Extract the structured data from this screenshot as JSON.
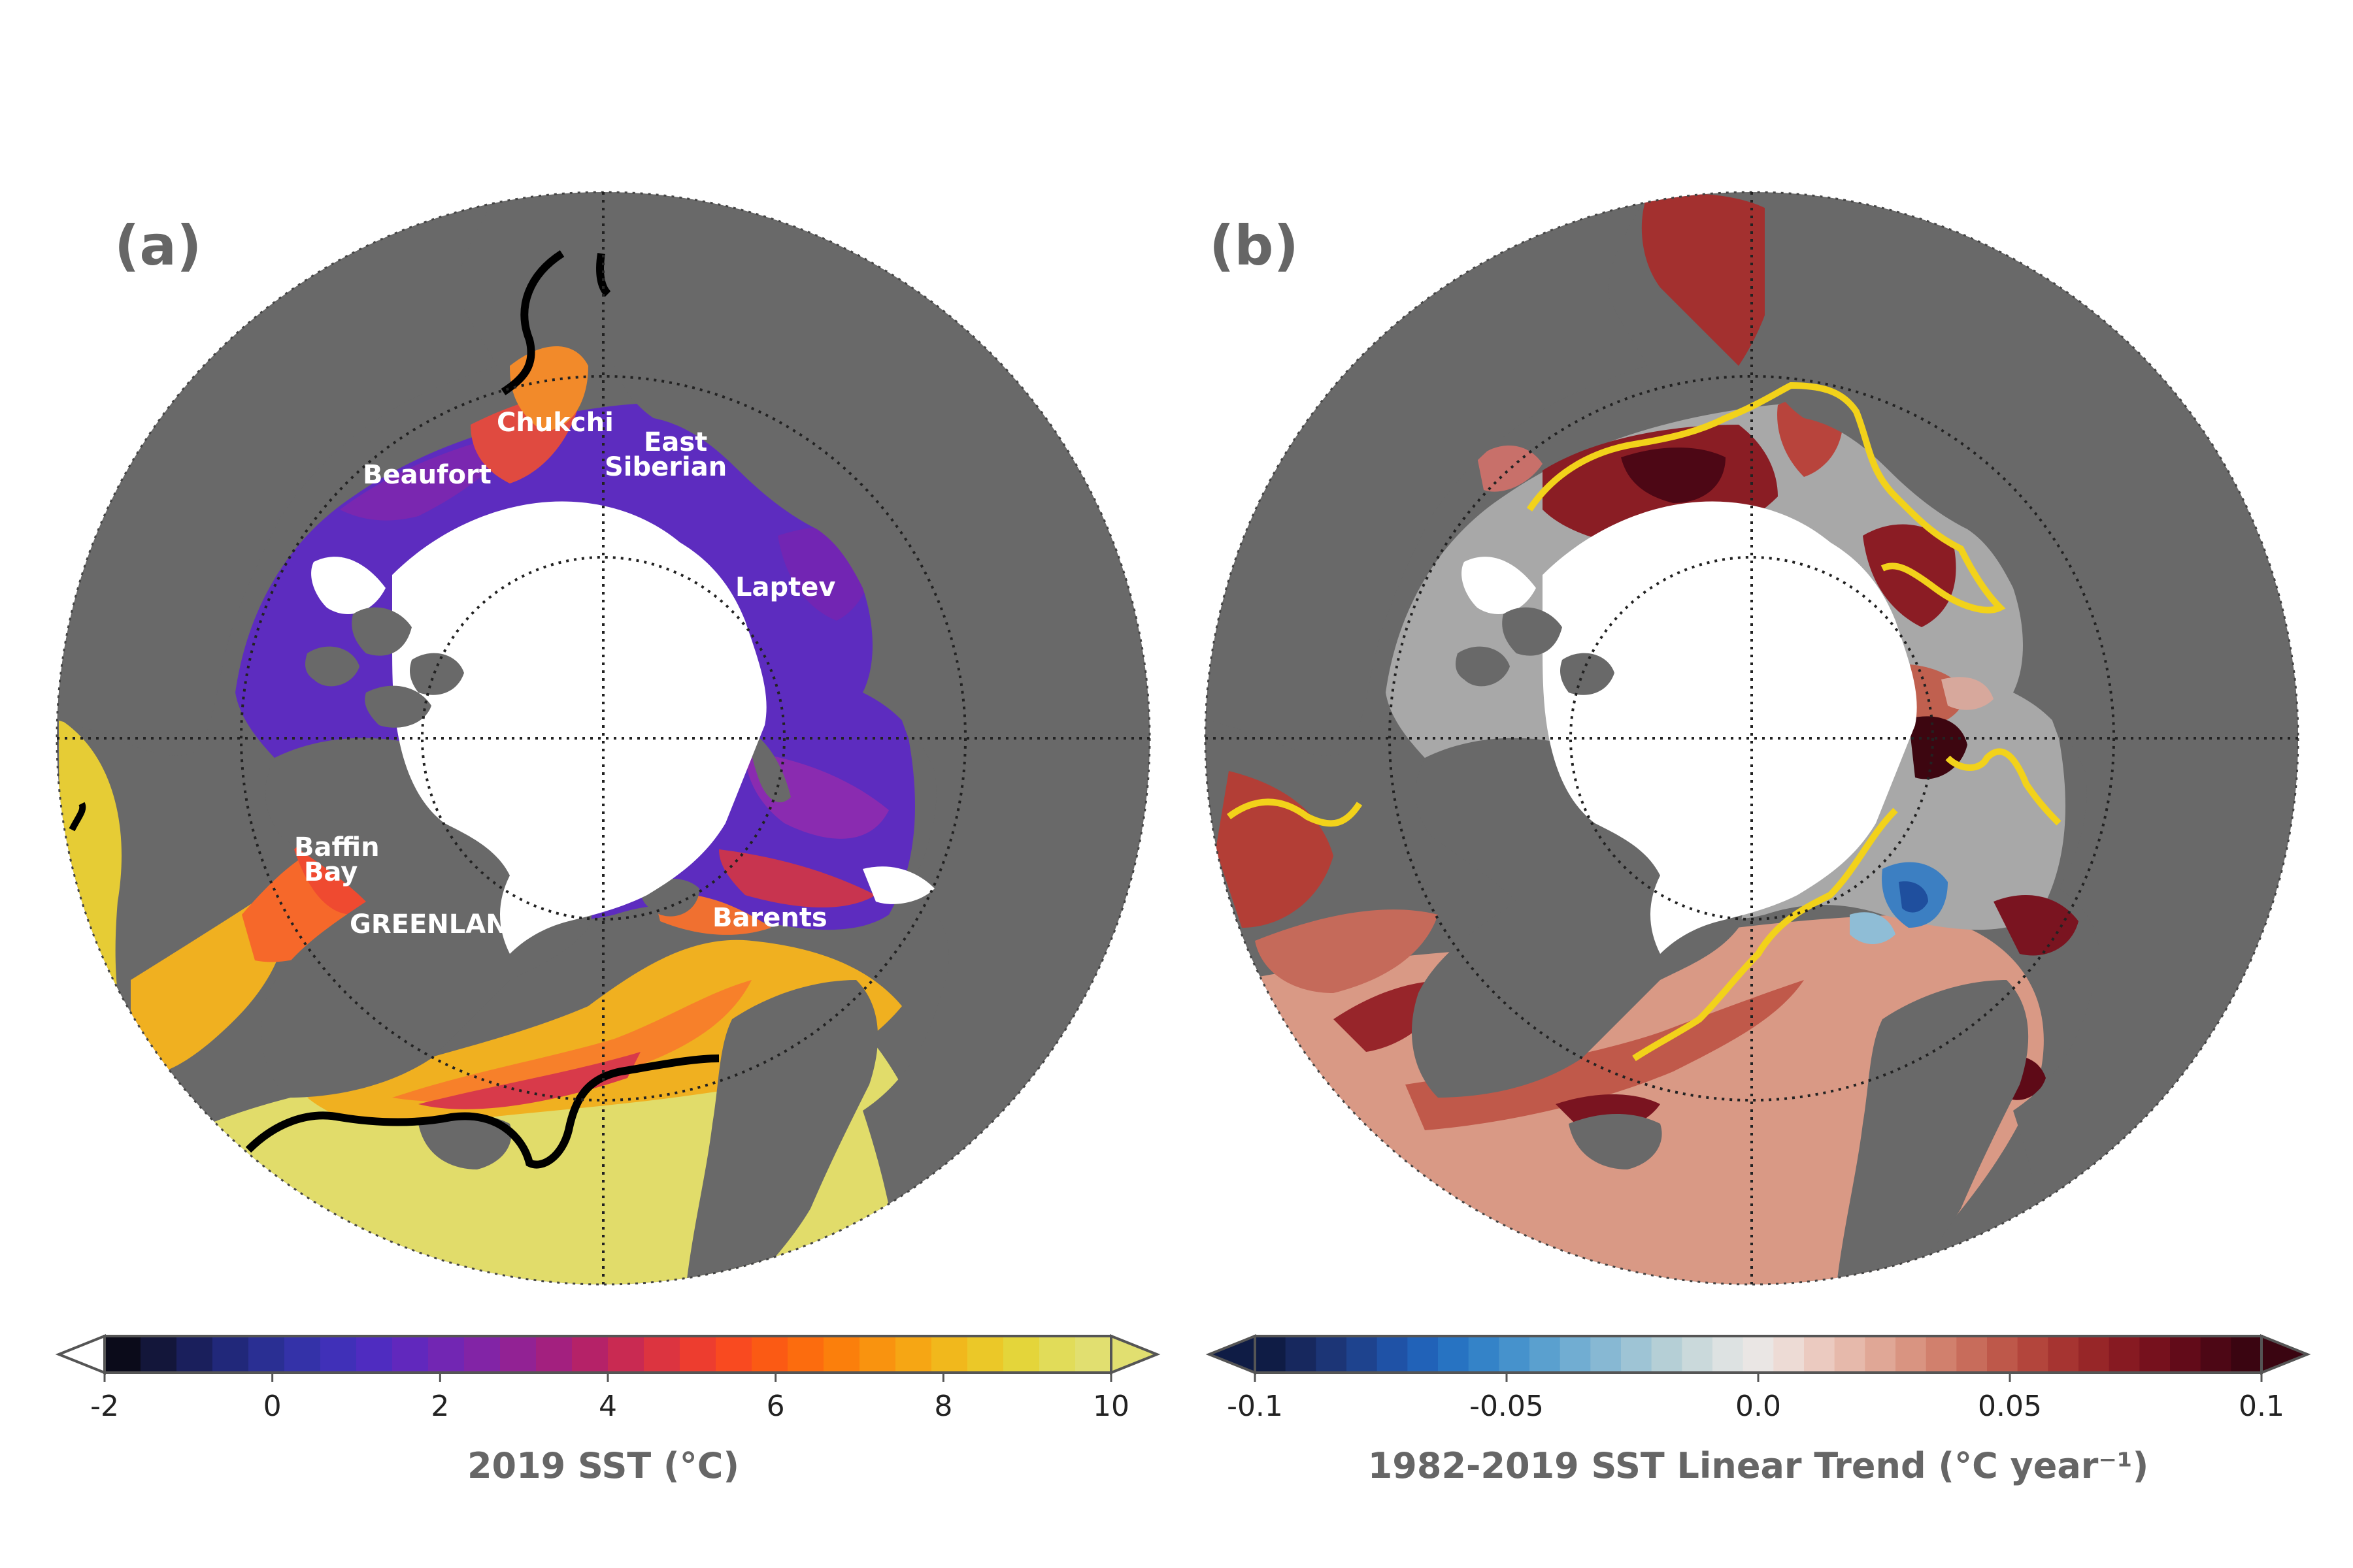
{
  "panels": [
    {
      "label": "(a)",
      "regions": [
        "Chukchi",
        "East",
        "Siberian",
        "Beaufort",
        "Laptev",
        "Baffin",
        "Bay",
        "GREENLAND",
        "Barents"
      ]
    },
    {
      "label": "(b)",
      "regions": []
    }
  ],
  "colorbars": [
    {
      "title": "2019 SST (°C)",
      "ticks": [
        "-2",
        "0",
        "2",
        "4",
        "6",
        "8",
        "10"
      ],
      "range": [
        -2,
        10
      ],
      "extend": "both",
      "colors": [
        "#0b0b1a",
        "#13163a",
        "#1a1f5c",
        "#21287a",
        "#2a2f93",
        "#3432a8",
        "#4030b8",
        "#4f2cc0",
        "#6128bd",
        "#7226b3",
        "#8224a6",
        "#922294",
        "#a3207f",
        "#b52268",
        "#c92a52",
        "#dc3440",
        "#ed3d2f",
        "#f94a20",
        "#fb5a14",
        "#fc6c0e",
        "#fb7f0c",
        "#f9930f",
        "#f6a614",
        "#f1b81c",
        "#ebc828",
        "#e4d53a",
        "#e1dc59",
        "#e1df70"
      ]
    },
    {
      "title": "1982-2019 SST Linear Trend (°C year⁻¹)",
      "ticks": [
        "-0.1",
        "-0.05",
        "0.0",
        "0.05",
        "0.1"
      ],
      "range": [
        -0.1,
        0.1
      ],
      "extend": "both",
      "colors": [
        "#0f1c45",
        "#17285e",
        "#1c3576",
        "#1e438e",
        "#1f52a6",
        "#2162b8",
        "#2773c2",
        "#3483c8",
        "#4692cc",
        "#5aa0cf",
        "#71add2",
        "#87b8d3",
        "#9ec4d5",
        "#b5cfd6",
        "#cad9db",
        "#dde2e2",
        "#eae6e4",
        "#eddbd5",
        "#ebcac0",
        "#e6b9ab",
        "#e0a796",
        "#d99481",
        "#d1806d",
        "#c86c5b",
        "#be584a",
        "#b3453c",
        "#a63431",
        "#972628",
        "#871a22",
        "#76111d",
        "#620b19",
        "#4d0715",
        "#3a0511"
      ]
    }
  ]
}
